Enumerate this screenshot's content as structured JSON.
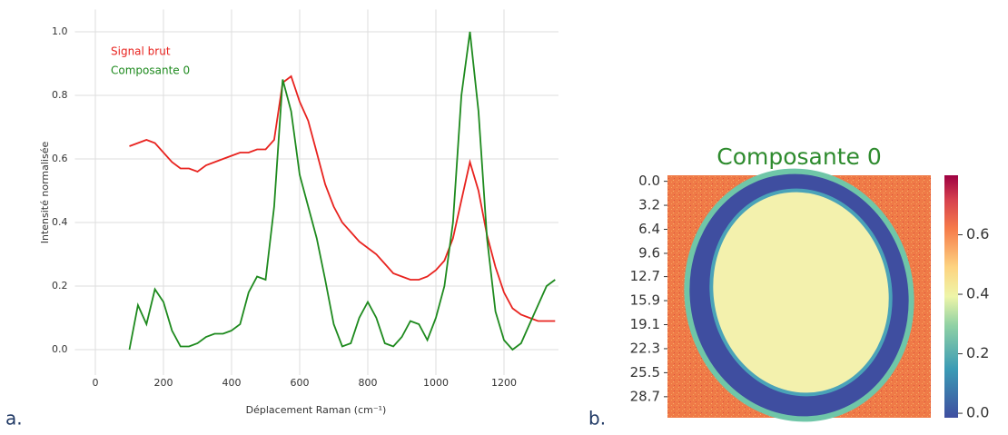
{
  "chart_data": [
    {
      "type": "line",
      "panel_label": "a.",
      "x_label": "Déplacement Raman (cm⁻¹)",
      "y_label": "Intensité normalisée",
      "x": [
        100,
        125,
        150,
        175,
        200,
        225,
        250,
        275,
        300,
        325,
        350,
        375,
        400,
        425,
        450,
        475,
        500,
        525,
        550,
        575,
        600,
        625,
        650,
        675,
        700,
        725,
        750,
        775,
        800,
        825,
        850,
        875,
        900,
        925,
        950,
        975,
        1000,
        1025,
        1050,
        1075,
        1100,
        1125,
        1150,
        1175,
        1200,
        1225,
        1250,
        1275,
        1300,
        1325,
        1350
      ],
      "series": [
        {
          "name": "Signal brut",
          "color": "#e8231f",
          "values": [
            0.64,
            0.65,
            0.66,
            0.65,
            0.62,
            0.59,
            0.57,
            0.57,
            0.56,
            0.58,
            0.59,
            0.6,
            0.61,
            0.62,
            0.62,
            0.63,
            0.63,
            0.66,
            0.84,
            0.86,
            0.78,
            0.72,
            0.62,
            0.52,
            0.45,
            0.4,
            0.37,
            0.34,
            0.32,
            0.3,
            0.27,
            0.24,
            0.23,
            0.22,
            0.22,
            0.23,
            0.25,
            0.28,
            0.35,
            0.47,
            0.59,
            0.5,
            0.36,
            0.26,
            0.18,
            0.13,
            0.11,
            0.1,
            0.09,
            0.09,
            0.09
          ]
        },
        {
          "name": "Composante 0",
          "color": "#1e8a1e",
          "values": [
            0.0,
            0.14,
            0.08,
            0.19,
            0.15,
            0.06,
            0.01,
            0.01,
            0.02,
            0.04,
            0.05,
            0.05,
            0.06,
            0.08,
            0.18,
            0.23,
            0.22,
            0.45,
            0.85,
            0.75,
            0.55,
            0.45,
            0.35,
            0.22,
            0.08,
            0.01,
            0.02,
            0.1,
            0.15,
            0.1,
            0.02,
            0.01,
            0.04,
            0.09,
            0.08,
            0.03,
            0.1,
            0.2,
            0.4,
            0.8,
            1.0,
            0.75,
            0.35,
            0.12,
            0.03,
            0.0,
            0.02,
            0.08,
            0.14,
            0.2,
            0.22
          ]
        }
      ],
      "xlim": [
        -60,
        1360
      ],
      "xticks": [
        0,
        200,
        400,
        600,
        800,
        1000,
        1200
      ],
      "ylim": [
        -0.08,
        1.07
      ],
      "yticks": [
        {
          "value": 0,
          "label": "0.0"
        },
        {
          "value": 0.2,
          "label": "0.2"
        },
        {
          "value": 0.4,
          "label": "0.4"
        },
        {
          "value": 0.6,
          "label": "0.6"
        },
        {
          "value": 0.8,
          "label": "0.8"
        },
        {
          "value": 1,
          "label": "1.0"
        }
      ],
      "grid": true
    },
    {
      "type": "heatmap",
      "panel_label": "b.",
      "title": "Composante 0",
      "title_color": "#2e8b2e",
      "ylim": [
        -0.8,
        31.5
      ],
      "yticks": [
        {
          "value": 0,
          "label": "0.0"
        },
        {
          "value": 3.2,
          "label": "3.2"
        },
        {
          "value": 6.4,
          "label": "6.4"
        },
        {
          "value": 9.6,
          "label": "9.6"
        },
        {
          "value": 12.7,
          "label": "12.7"
        },
        {
          "value": 15.9,
          "label": "15.9"
        },
        {
          "value": 19.1,
          "label": "19.1"
        },
        {
          "value": 22.3,
          "label": "22.3"
        },
        {
          "value": 25.5,
          "label": "25.5"
        },
        {
          "value": 28.7,
          "label": "28.7"
        }
      ],
      "clim": [
        -0.015,
        0.8
      ],
      "cticks": [
        {
          "value": 0,
          "label": "0.0"
        },
        {
          "value": 0.2,
          "label": "0.2"
        },
        {
          "value": 0.4,
          "label": "0.4"
        },
        {
          "value": 0.6,
          "label": "0.6"
        }
      ]
    }
  ]
}
